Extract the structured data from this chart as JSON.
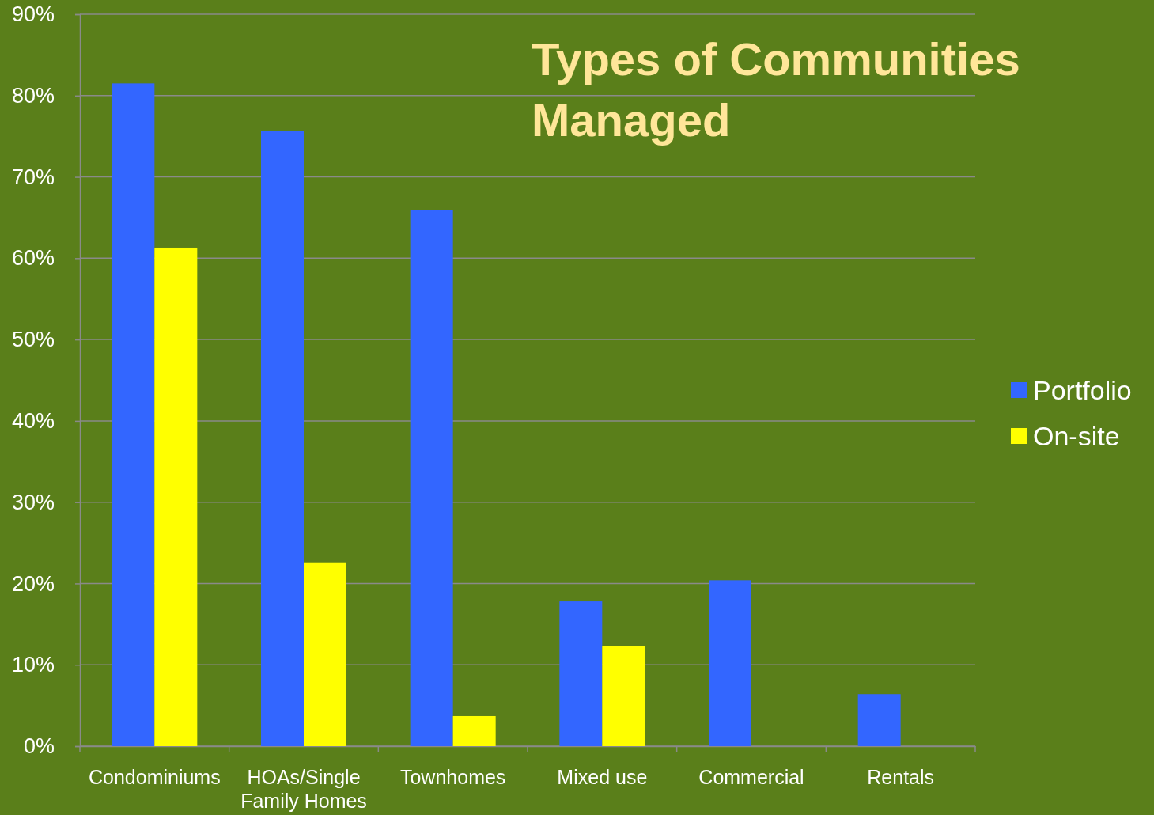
{
  "chart_data": {
    "type": "bar",
    "title": "Types of Communities Managed",
    "categories": [
      "Condominiums",
      "HOAs/Single Family Homes",
      "Townhomes",
      "Mixed use",
      "Commercial",
      "Rentals"
    ],
    "series": [
      {
        "name": "Portfolio",
        "color": "#3366ff",
        "values": [
          81.5,
          75.7,
          65.9,
          17.8,
          20.4,
          6.4
        ]
      },
      {
        "name": "On-site",
        "color": "#ffff00",
        "values": [
          61.3,
          22.6,
          3.7,
          12.3,
          null,
          null
        ]
      }
    ],
    "ylim": [
      0,
      90
    ],
    "yticks": [
      {
        "value": 0,
        "label": "0%"
      },
      {
        "value": 10,
        "label": "10%"
      },
      {
        "value": 20,
        "label": "20%"
      },
      {
        "value": 30,
        "label": "30%"
      },
      {
        "value": 40,
        "label": "40%"
      },
      {
        "value": 50,
        "label": "50%"
      },
      {
        "value": 60,
        "label": "60%"
      },
      {
        "value": 70,
        "label": "70%"
      },
      {
        "value": 80,
        "label": "80%"
      },
      {
        "value": 90,
        "label": "90%"
      }
    ],
    "grid": "y",
    "legend": "right"
  }
}
